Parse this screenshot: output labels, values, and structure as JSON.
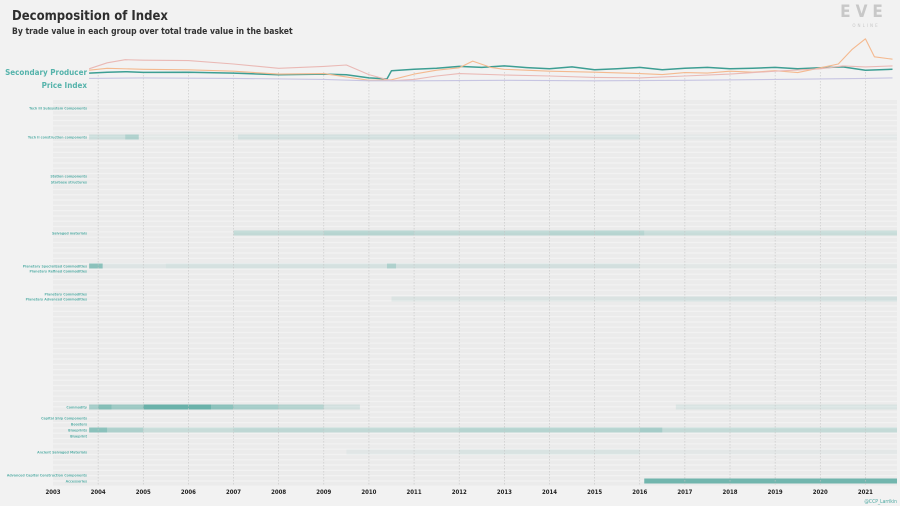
{
  "header": {
    "title": "Decomposition of Index",
    "subtitle": "By trade value in each group over total trade value in the basket",
    "logo_text": "EVE",
    "logo_subtext": "ONLINE",
    "credit": "@CCP_Larrikin"
  },
  "colors": {
    "teal": "#3d9e93",
    "peach": "#f4b98f",
    "pink": "#eab9b5",
    "lavender": "#c7c5e2",
    "label": "#5fb2ab",
    "gridline": "#c4c4c4"
  },
  "chart_data": {
    "type": "heatmap",
    "title": "Decomposition of Index",
    "subtitle": "By trade value in each group over total trade value in the basket",
    "x_axis": {
      "years": [
        "2003",
        "2004",
        "2005",
        "2006",
        "2007",
        "2008",
        "2009",
        "2010",
        "2011",
        "2012",
        "2013",
        "2014",
        "2015",
        "2016",
        "2017",
        "2018",
        "2019",
        "2020",
        "2021"
      ],
      "range": [
        2003.0,
        2021.7
      ]
    },
    "top_series_labels": [
      "Secondary Producer",
      "Price Index"
    ],
    "top_lines": [
      {
        "color": "teal",
        "points": [
          [
            2003.8,
            0.62
          ],
          [
            2004.2,
            0.66
          ],
          [
            2004.6,
            0.68
          ],
          [
            2005.0,
            0.65
          ],
          [
            2006.0,
            0.66
          ],
          [
            2007.0,
            0.62
          ],
          [
            2008.0,
            0.55
          ],
          [
            2009.0,
            0.58
          ],
          [
            2009.5,
            0.55
          ],
          [
            2010.0,
            0.42
          ],
          [
            2010.4,
            0.38
          ],
          [
            2010.5,
            0.72
          ],
          [
            2011.0,
            0.78
          ],
          [
            2011.5,
            0.82
          ],
          [
            2012.0,
            0.9
          ],
          [
            2012.5,
            0.86
          ],
          [
            2013.0,
            0.92
          ],
          [
            2013.5,
            0.85
          ],
          [
            2014.0,
            0.8
          ],
          [
            2014.5,
            0.88
          ],
          [
            2015.0,
            0.76
          ],
          [
            2015.5,
            0.8
          ],
          [
            2016.0,
            0.86
          ],
          [
            2016.5,
            0.76
          ],
          [
            2017.0,
            0.82
          ],
          [
            2017.5,
            0.86
          ],
          [
            2018.0,
            0.8
          ],
          [
            2018.5,
            0.82
          ],
          [
            2019.0,
            0.86
          ],
          [
            2019.5,
            0.8
          ],
          [
            2020.0,
            0.84
          ],
          [
            2020.5,
            0.88
          ],
          [
            2021.0,
            0.74
          ],
          [
            2021.6,
            0.78
          ]
        ]
      },
      {
        "color": "peach",
        "points": [
          [
            2003.8,
            0.74
          ],
          [
            2004.2,
            0.82
          ],
          [
            2005.0,
            0.78
          ],
          [
            2006.0,
            0.76
          ],
          [
            2007.0,
            0.7
          ],
          [
            2008.0,
            0.58
          ],
          [
            2009.0,
            0.6
          ],
          [
            2010.0,
            0.32
          ],
          [
            2010.5,
            0.34
          ],
          [
            2011.0,
            0.58
          ],
          [
            2011.5,
            0.74
          ],
          [
            2012.0,
            0.84
          ],
          [
            2012.3,
            1.12
          ],
          [
            2012.7,
            0.86
          ],
          [
            2013.0,
            0.78
          ],
          [
            2014.0,
            0.7
          ],
          [
            2015.0,
            0.66
          ],
          [
            2016.0,
            0.6
          ],
          [
            2016.5,
            0.56
          ],
          [
            2017.0,
            0.64
          ],
          [
            2017.5,
            0.62
          ],
          [
            2018.0,
            0.7
          ],
          [
            2018.5,
            0.66
          ],
          [
            2019.0,
            0.72
          ],
          [
            2019.5,
            0.64
          ],
          [
            2020.0,
            0.84
          ],
          [
            2020.4,
            1.0
          ],
          [
            2020.7,
            1.6
          ],
          [
            2021.0,
            2.05
          ],
          [
            2021.2,
            1.3
          ],
          [
            2021.6,
            1.2
          ]
        ]
      },
      {
        "color": "pink",
        "points": [
          [
            2003.8,
            0.8
          ],
          [
            2004.2,
            1.05
          ],
          [
            2004.6,
            1.18
          ],
          [
            2005.0,
            1.16
          ],
          [
            2006.0,
            1.14
          ],
          [
            2007.0,
            1.0
          ],
          [
            2008.0,
            0.82
          ],
          [
            2009.0,
            0.9
          ],
          [
            2009.5,
            0.96
          ],
          [
            2010.0,
            0.56
          ],
          [
            2010.5,
            0.3
          ],
          [
            2011.0,
            0.36
          ],
          [
            2011.5,
            0.5
          ],
          [
            2012.0,
            0.6
          ],
          [
            2013.0,
            0.54
          ],
          [
            2014.0,
            0.5
          ],
          [
            2015.0,
            0.44
          ],
          [
            2016.0,
            0.42
          ],
          [
            2017.0,
            0.5
          ],
          [
            2018.0,
            0.58
          ],
          [
            2019.0,
            0.7
          ],
          [
            2020.0,
            0.8
          ],
          [
            2020.5,
            0.92
          ],
          [
            2021.0,
            0.88
          ],
          [
            2021.6,
            0.92
          ]
        ]
      },
      {
        "color": "lavender",
        "points": [
          [
            2003.8,
            0.4
          ],
          [
            2005.0,
            0.42
          ],
          [
            2007.0,
            0.4
          ],
          [
            2009.0,
            0.36
          ],
          [
            2010.0,
            0.3
          ],
          [
            2011.0,
            0.3
          ],
          [
            2013.0,
            0.32
          ],
          [
            2015.0,
            0.3
          ],
          [
            2017.0,
            0.32
          ],
          [
            2019.0,
            0.36
          ],
          [
            2021.0,
            0.4
          ],
          [
            2021.6,
            0.42
          ]
        ]
      }
    ],
    "row_labels": [
      "Tech III Subsystem Components",
      "Tech II construction components",
      "Station components",
      "Starbase structures",
      "Salvaged materials",
      "Planetary Specialized Commodities",
      "Planetary Refined Commodities",
      "Planetary Commodities",
      "Planetary Advanced Commodities",
      "Commodity",
      "Capital Ship Components",
      "Boosters",
      "Blueprints",
      "Blueprint",
      "Ancient Salvaged Materials",
      "Advanced Capital Construction Components",
      "Accessories"
    ],
    "rows": [
      {
        "label": "Tech II construction components",
        "segments": [
          [
            2003.8,
            2004.6,
            0.18
          ],
          [
            2004.6,
            2004.9,
            0.35
          ],
          [
            2004.9,
            2007.1,
            0.05
          ],
          [
            2007.1,
            2014.0,
            0.14
          ],
          [
            2014.0,
            2016.0,
            0.12
          ],
          [
            2016.0,
            2021.7,
            0.04
          ]
        ]
      },
      {
        "label": "Salvaged materials",
        "segments": [
          [
            2007.0,
            2009.0,
            0.24
          ],
          [
            2009.0,
            2011.0,
            0.3
          ],
          [
            2011.0,
            2014.0,
            0.26
          ],
          [
            2014.0,
            2016.1,
            0.3
          ],
          [
            2016.1,
            2021.7,
            0.2
          ]
        ]
      },
      {
        "label": "Planetary Specialized Commodities",
        "segments": [
          [
            2003.8,
            2004.1,
            0.55
          ],
          [
            2004.1,
            2005.5,
            0.08
          ],
          [
            2005.5,
            2010.4,
            0.12
          ],
          [
            2010.4,
            2010.6,
            0.35
          ],
          [
            2010.6,
            2016.0,
            0.14
          ],
          [
            2016.0,
            2021.7,
            0.05
          ]
        ]
      },
      {
        "label": "Planetary Advanced Commodities",
        "segments": [
          [
            2010.5,
            2016.0,
            0.09
          ],
          [
            2016.0,
            2021.7,
            0.14
          ]
        ]
      },
      {
        "label": "Commodity",
        "segments": [
          [
            2003.8,
            2004.0,
            0.4
          ],
          [
            2004.0,
            2004.3,
            0.6
          ],
          [
            2004.3,
            2005.0,
            0.45
          ],
          [
            2005.0,
            2006.5,
            0.75
          ],
          [
            2006.5,
            2007.0,
            0.55
          ],
          [
            2007.0,
            2008.0,
            0.4
          ],
          [
            2008.0,
            2009.0,
            0.32
          ],
          [
            2009.0,
            2009.8,
            0.14
          ],
          [
            2016.8,
            2021.7,
            0.1
          ]
        ]
      },
      {
        "label": "Blueprints",
        "segments": [
          [
            2003.8,
            2004.2,
            0.55
          ],
          [
            2004.2,
            2005.0,
            0.35
          ],
          [
            2005.0,
            2007.0,
            0.2
          ],
          [
            2007.0,
            2009.0,
            0.26
          ],
          [
            2009.0,
            2012.0,
            0.24
          ],
          [
            2012.0,
            2016.0,
            0.3
          ],
          [
            2016.0,
            2016.5,
            0.4
          ],
          [
            2016.5,
            2021.7,
            0.22
          ]
        ]
      },
      {
        "label": "Ancient Salvaged Materials",
        "segments": [
          [
            2009.5,
            2012.0,
            0.06
          ],
          [
            2012.0,
            2016.0,
            0.1
          ],
          [
            2016.0,
            2021.7,
            0.04
          ]
        ]
      },
      {
        "label": "Accessories",
        "segments": [
          [
            2016.1,
            2021.7,
            0.7
          ]
        ]
      }
    ]
  }
}
